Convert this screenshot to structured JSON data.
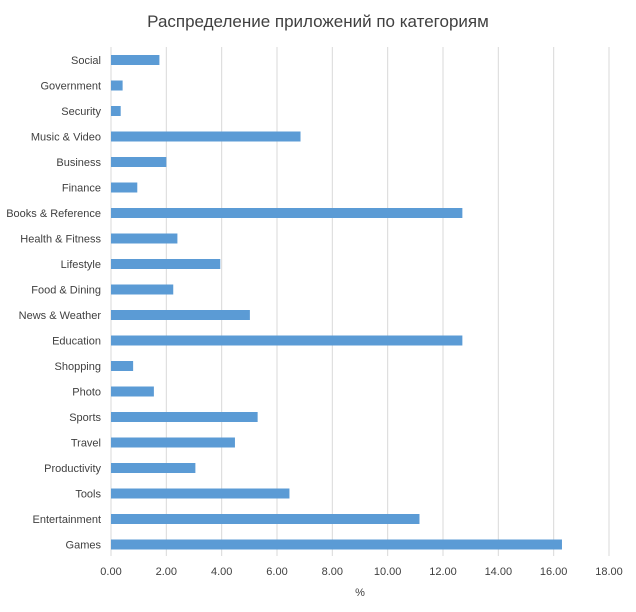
{
  "chart_data": {
    "type": "bar",
    "orientation": "horizontal",
    "title": "Распределение приложений по категориям",
    "xlabel": "%",
    "ylabel": "",
    "xlim": [
      0,
      18
    ],
    "x_ticks": [
      "0.00",
      "2.00",
      "4.00",
      "6.00",
      "8.00",
      "10.00",
      "12.00",
      "14.00",
      "16.00",
      "18.00"
    ],
    "grid": "vertical",
    "legend": "none",
    "categories": [
      "Social",
      "Government",
      "Security",
      "Music & Video",
      "Business",
      "Finance",
      "Books & Reference",
      "Health & Fitness",
      "Lifestyle",
      "Food & Dining",
      "News & Weather",
      "Education",
      "Shopping",
      "Photo",
      "Sports",
      "Travel",
      "Productivity",
      "Tools",
      "Entertainment",
      "Games"
    ],
    "values": [
      1.75,
      0.42,
      0.35,
      6.85,
      2.0,
      0.95,
      12.7,
      2.4,
      3.95,
      2.25,
      5.02,
      12.7,
      0.8,
      1.55,
      5.3,
      4.48,
      3.05,
      6.45,
      11.15,
      16.3
    ],
    "colors": {
      "bar": "#5b9bd5",
      "grid": "#d9d9d9",
      "text": "#404040"
    }
  }
}
